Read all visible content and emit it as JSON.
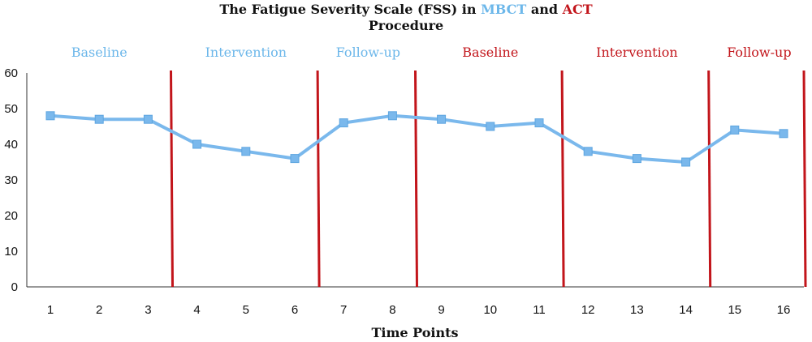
{
  "chart_data": {
    "type": "line",
    "title_parts": [
      {
        "text": "The Fatigue Severity Scale (FSS) in ",
        "class": "plain"
      },
      {
        "text": "MBCT",
        "class": "mbct"
      },
      {
        "text": " and ",
        "class": "plain"
      },
      {
        "text": "ACT",
        "class": "act"
      }
    ],
    "title_line2": "Procedure",
    "xlabel": "Time Points",
    "ylabel": "",
    "ylim": [
      0,
      60
    ],
    "yticks": [
      0,
      10,
      20,
      30,
      40,
      50,
      60
    ],
    "x": [
      1,
      2,
      3,
      4,
      5,
      6,
      7,
      8,
      9,
      10,
      11,
      12,
      13,
      14,
      15,
      16
    ],
    "series": [
      {
        "values": [
          48,
          47,
          47,
          40,
          38,
          36,
          46,
          48,
          47,
          45,
          46,
          38,
          36,
          35,
          44,
          43
        ],
        "color": "#7ab8ec"
      }
    ],
    "phase_dividers_after_x": [
      3.5,
      6.5,
      8.5,
      11.5,
      14.5,
      16.5
    ],
    "divider_color": "#c2151b",
    "phases": [
      {
        "label": "Baseline",
        "color": "#6cb7ea",
        "from": 1,
        "to": 3
      },
      {
        "label": "Intervention",
        "color": "#6cb7ea",
        "from": 4,
        "to": 6
      },
      {
        "label": "Follow-up",
        "color": "#6cb7ea",
        "from": 7,
        "to": 8
      },
      {
        "label": "Baseline",
        "color": "#c2151b",
        "from": 9,
        "to": 11
      },
      {
        "label": "Intervention",
        "color": "#c2151b",
        "from": 12,
        "to": 14
      },
      {
        "label": "Follow-up",
        "color": "#c2151b",
        "from": 15,
        "to": 16
      }
    ],
    "grid": false,
    "legend": "none"
  }
}
